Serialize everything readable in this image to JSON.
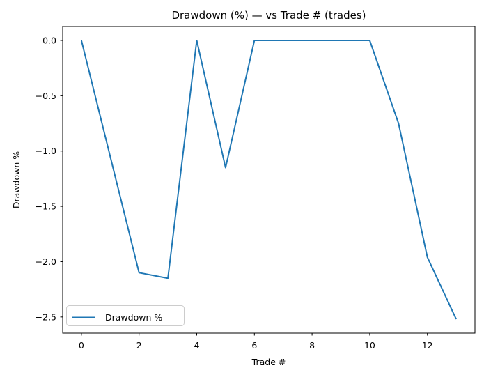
{
  "chart_data": {
    "type": "line",
    "title": "Drawdown (%) — vs Trade # (trades)",
    "xlabel": "Trade #",
    "ylabel": "Drawdown %",
    "x": [
      0,
      1,
      2,
      3,
      4,
      5,
      6,
      7,
      8,
      9,
      10,
      11,
      12,
      13
    ],
    "series": [
      {
        "name": "Drawdown %",
        "color": "#1f77b4",
        "values": [
          0.0,
          -1.05,
          -2.1,
          -2.15,
          0.0,
          -1.15,
          0.0,
          0.0,
          0.0,
          0.0,
          0.0,
          -0.75,
          -1.96,
          -2.52
        ]
      }
    ],
    "xlim": [
      -0.65,
      13.65
    ],
    "ylim": [
      -2.646,
      0.126
    ],
    "x_ticks": [
      {
        "v": 0,
        "label": "0"
      },
      {
        "v": 2,
        "label": "2"
      },
      {
        "v": 4,
        "label": "4"
      },
      {
        "v": 6,
        "label": "6"
      },
      {
        "v": 8,
        "label": "8"
      },
      {
        "v": 10,
        "label": "10"
      },
      {
        "v": 12,
        "label": "12"
      }
    ],
    "y_ticks": [
      {
        "v": 0.0,
        "label": "0.0"
      },
      {
        "v": -0.5,
        "label": "−0.5"
      },
      {
        "v": -1.0,
        "label": "−1.0"
      },
      {
        "v": -1.5,
        "label": "−1.5"
      },
      {
        "v": -2.0,
        "label": "−2.0"
      },
      {
        "v": -2.5,
        "label": "−2.5"
      }
    ],
    "legend": {
      "position": "lower left",
      "entries": [
        "Drawdown %"
      ]
    },
    "grid": false,
    "background": "#ffffff",
    "spine_color": "#000000",
    "line_width": 2
  }
}
